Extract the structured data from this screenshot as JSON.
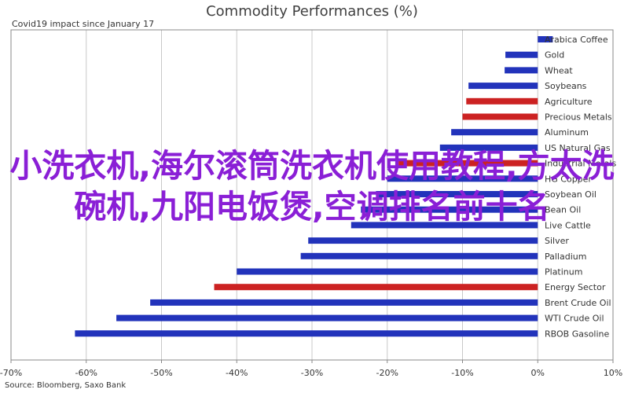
{
  "chart_data": {
    "type": "bar",
    "orientation": "horizontal",
    "title": "Commodity Performances (%)",
    "subtitle": "Covid19 impact since January 17",
    "source": "Source: Bloomberg, Saxo Bank",
    "xlim": [
      -70,
      10
    ],
    "xticks": [
      -70,
      -60,
      -50,
      -40,
      -30,
      -20,
      -10,
      0,
      10
    ],
    "tick_suffix": "%",
    "grid": true,
    "categories": [
      "Arabica Coffee",
      "Gold",
      "Wheat",
      "Soybeans",
      "Agriculture",
      "Precious Metals",
      "Aluminum",
      "US Natural Gas",
      "Industrial Metals",
      "HG Copper",
      "Soybean Oil",
      "Bean Oil",
      "Live Cattle",
      "Silver",
      "Palladium",
      "Platinum",
      "Energy Sector",
      "Brent Crude Oil",
      "WTI Crude Oil",
      "RBOB Gasoline"
    ],
    "values": [
      2,
      -4.3,
      -4.4,
      -9.2,
      -9.5,
      -10,
      -11.5,
      -13,
      -18.5,
      -20,
      -21.5,
      -23.5,
      -24.8,
      -30.5,
      -31.5,
      -40,
      -43,
      -51.5,
      -56,
      -61.5
    ],
    "sector_flags": [
      false,
      false,
      false,
      false,
      true,
      true,
      false,
      false,
      true,
      false,
      false,
      false,
      false,
      false,
      false,
      false,
      true,
      false,
      false,
      false
    ],
    "colors": {
      "commodity": "#2233bb",
      "sector": "#cc2222",
      "grid": "#c8c8c8",
      "axis": "#888888"
    }
  },
  "overlay_text": "小洗衣机,海尔滚筒洗衣机使用教程,方太洗碗机,九阳电饭煲,空调排名前十名"
}
